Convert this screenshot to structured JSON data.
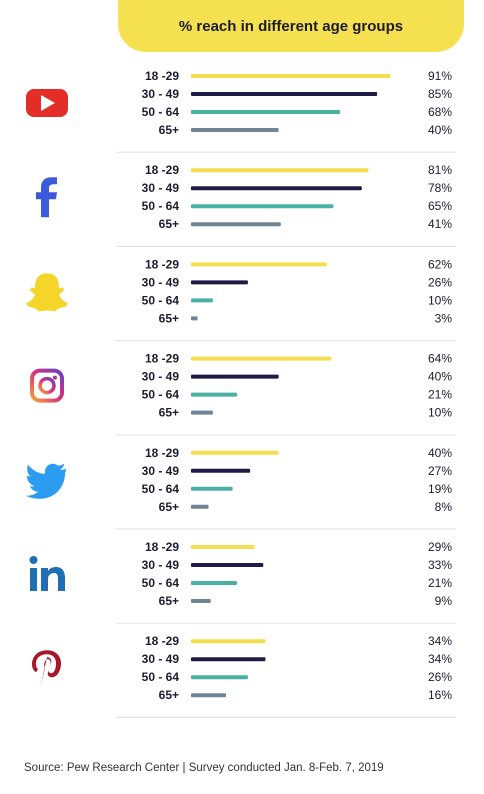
{
  "title": "% reach in different age groups",
  "source": "Source: Pew Research Center | Survey conducted Jan. 8-Feb. 7, 2019",
  "colors": {
    "18-29": "#f3df4d",
    "30-49": "#1e1b48",
    "50-64": "#48b1a3",
    "65+": "#6f8494",
    "divider": "#e6e6e6"
  },
  "chart_data": {
    "type": "bar",
    "orientation": "horizontal",
    "title": "% reach in different age groups",
    "categories": [
      "18 -29",
      "30 - 49",
      "50 - 64",
      "65+"
    ],
    "xlim": [
      0,
      100
    ],
    "unit": "%",
    "groups": [
      {
        "platform_icon": "youtube-icon",
        "values": [
          91,
          85,
          68,
          40
        ],
        "labels": [
          "91%",
          "85%",
          "68%",
          "40%"
        ]
      },
      {
        "platform_icon": "facebook-icon",
        "values": [
          81,
          78,
          65,
          41
        ],
        "labels": [
          "81%",
          "78%",
          "65%",
          "41%"
        ]
      },
      {
        "platform_icon": "snapchat-icon",
        "values": [
          62,
          26,
          10,
          3
        ],
        "labels": [
          "62%",
          "26%",
          "10%",
          "3%"
        ]
      },
      {
        "platform_icon": "instagram-icon",
        "values": [
          64,
          40,
          21,
          10
        ],
        "labels": [
          "64%",
          "40%",
          "21%",
          "10%"
        ]
      },
      {
        "platform_icon": "twitter-icon",
        "values": [
          40,
          27,
          19,
          8
        ],
        "labels": [
          "40%",
          "27%",
          "19%",
          "8%"
        ]
      },
      {
        "platform_icon": "linkedin-icon",
        "values": [
          29,
          33,
          21,
          9
        ],
        "labels": [
          "29%",
          "33%",
          "21%",
          "9%"
        ]
      },
      {
        "platform_icon": "pinterest-icon",
        "values": [
          34,
          34,
          26,
          16
        ],
        "labels": [
          "34%",
          "34%",
          "26%",
          "16%"
        ]
      }
    ]
  }
}
